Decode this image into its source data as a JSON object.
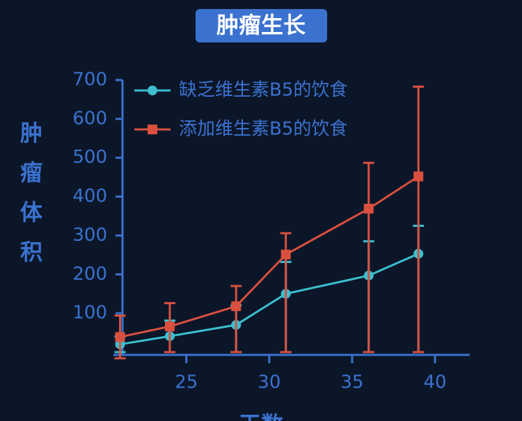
{
  "chart_data": {
    "type": "line",
    "title": "肿瘤生长",
    "y_label": "肿瘤体积",
    "x_label": "天数",
    "x": [
      21,
      24,
      28,
      31,
      36,
      39
    ],
    "series": [
      {
        "name": "缺乏维生素B5的饮食",
        "color": "#3cbfcf",
        "marker": "circle",
        "values": [
          20,
          41,
          70,
          150,
          197,
          253
        ],
        "errors": [
          20,
          40,
          50,
          82,
          88,
          72
        ]
      },
      {
        "name": "添加维生素B5的饮食",
        "color": "#d9503f",
        "marker": "square",
        "values": [
          39,
          66,
          118,
          251,
          369,
          452
        ],
        "errors": [
          55,
          60,
          52,
          55,
          118,
          231
        ]
      }
    ],
    "xlim": [
      20.6,
      42.1
    ],
    "xticks": [
      25,
      30,
      35,
      40
    ],
    "ylim": [
      0,
      700
    ],
    "yticks": [
      100,
      200,
      300,
      400,
      500,
      600,
      700
    ],
    "axis_color": "#3b72d0",
    "background": "#0b1628",
    "legend": "upper-left"
  }
}
